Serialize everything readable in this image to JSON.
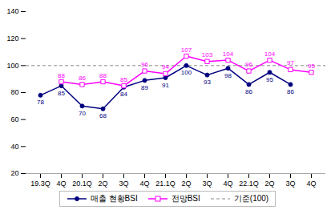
{
  "chart_data": {
    "type": "line",
    "categories": [
      "19.3Q",
      "4Q",
      "20.1Q",
      "2Q",
      "3Q",
      "4Q",
      "21.1Q",
      "2Q",
      "3Q",
      "4Q",
      "22.1Q",
      "2Q",
      "3Q",
      "4Q"
    ],
    "series": [
      {
        "name": "매출 현황BSI",
        "color": "#000080",
        "marker": "circle",
        "values": [
          78,
          85,
          70,
          68,
          84,
          89,
          91,
          100,
          93,
          98,
          86,
          95,
          86,
          null
        ]
      },
      {
        "name": "전망BSI",
        "color": "#FF00FF",
        "marker": "square",
        "values": [
          null,
          88,
          86,
          88,
          85,
          96,
          94,
          107,
          103,
          104,
          96,
          104,
          97,
          95
        ]
      }
    ],
    "reference_lines": [
      {
        "name": "기준(100)",
        "value": 100,
        "color": "#888888",
        "line_style": "dashed"
      }
    ],
    "ylim": [
      20,
      140
    ],
    "yticks": [
      20,
      40,
      60,
      80,
      100,
      120,
      140
    ],
    "grid": false,
    "data_labels": true,
    "legend": "bottom"
  }
}
